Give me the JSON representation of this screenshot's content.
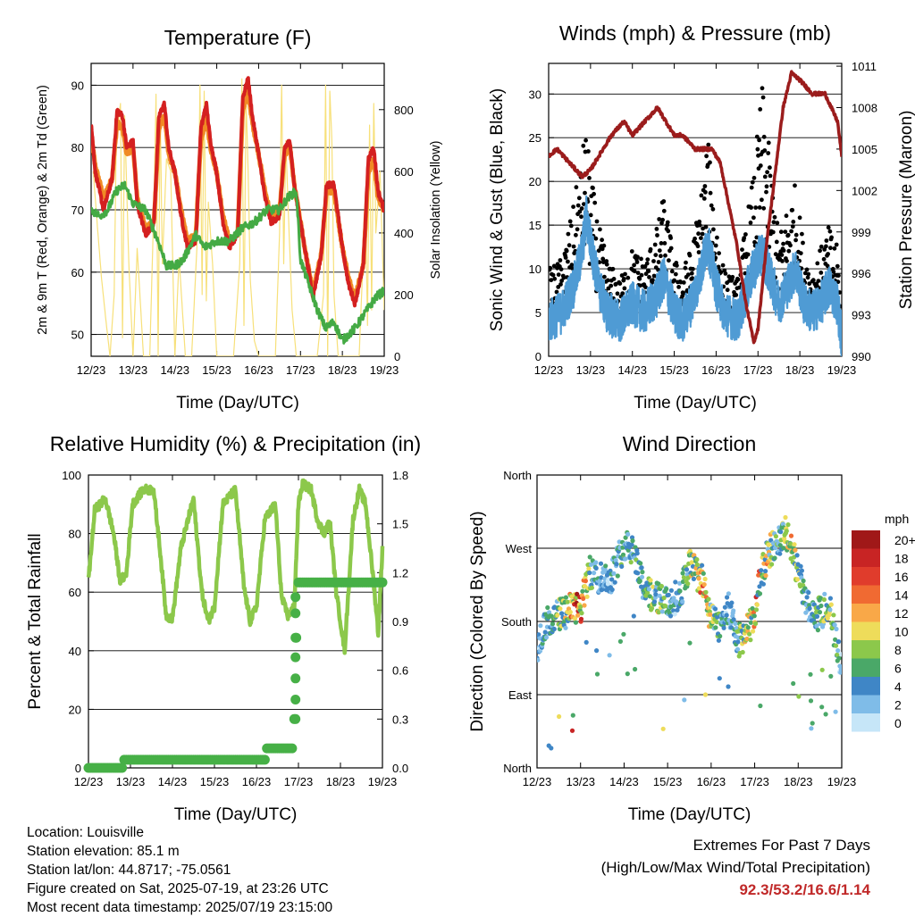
{
  "x_ticks": [
    "12/23",
    "13/23",
    "14/23",
    "15/23",
    "16/23",
    "17/23",
    "18/23",
    "19/23"
  ],
  "colors": {
    "temp_2m": "#d42020",
    "temp_9m": "#f08a24",
    "dewpoint": "#44aa44",
    "solar": "#f7e07a",
    "wind": "#4f9bd4",
    "gust": "#000000",
    "pressure": "#9b1c1c",
    "rh": "#8cc84b",
    "precip": "#46b046"
  },
  "chart_data": [
    {
      "type": "line",
      "title": "Temperature (F)",
      "xlabel": "Time (Day/UTC)",
      "ylabel": "2m & 9m T (Red, Orange) & 2m Td (Green)",
      "ylabel_right": "Solar Insolation (Yellow)",
      "x_ticks": [
        "12/23",
        "13/23",
        "14/23",
        "15/23",
        "16/23",
        "17/23",
        "18/23",
        "19/23"
      ],
      "ylim": [
        46.5,
        93.5
      ],
      "yticks": [
        50,
        60,
        70,
        80,
        90
      ],
      "ylim_right": [
        0,
        950
      ],
      "yticks_right": [
        0,
        200,
        400,
        600,
        800
      ],
      "grid": "horizontal",
      "series": [
        {
          "x": [
            0,
            0.1,
            0.3,
            0.5,
            0.62,
            0.75,
            0.85,
            1.0,
            1.1,
            1.3,
            1.5,
            1.62,
            1.75,
            1.85,
            2.0,
            2.15,
            2.3,
            2.5,
            2.62,
            2.75,
            2.85,
            3.0,
            3.15,
            3.3,
            3.5,
            3.62,
            3.75,
            3.85,
            4.0,
            4.15,
            4.3,
            4.5,
            4.62,
            4.75,
            4.85,
            5.0,
            5.15,
            5.3,
            5.5,
            5.62,
            5.8,
            6.0,
            6.15,
            6.3,
            6.5,
            6.62,
            6.75,
            6.85,
            7.0
          ],
          "y": [
            84,
            76,
            70,
            75,
            86,
            85,
            80,
            81,
            71,
            66,
            68,
            85,
            87,
            80,
            76,
            69,
            64,
            65,
            83,
            87,
            81,
            76,
            68,
            64,
            66,
            88,
            91,
            85,
            79,
            72,
            68,
            69,
            80,
            81,
            74,
            68,
            62,
            56,
            63,
            74,
            74,
            64,
            58,
            55,
            61,
            78,
            80,
            73,
            70
          ]
        },
        {
          "x": [
            0,
            0.1,
            0.3,
            0.5,
            0.62,
            0.75,
            0.85,
            1.0,
            1.1,
            1.3,
            1.5,
            1.62,
            1.75,
            1.85,
            2.0,
            2.15,
            2.3,
            2.5,
            2.62,
            2.75,
            2.85,
            3.0,
            3.15,
            3.3,
            3.5,
            3.62,
            3.75,
            3.85,
            4.0,
            4.15,
            4.3,
            4.5,
            4.62,
            4.75,
            4.85,
            5.0,
            5.15,
            5.3,
            5.5,
            5.62,
            5.8,
            6.0,
            6.15,
            6.3,
            6.5,
            6.62,
            6.75,
            6.85,
            7.0
          ],
          "y": [
            82,
            77,
            72,
            75,
            84,
            83,
            79,
            80,
            72,
            67,
            68,
            83,
            85,
            79,
            76,
            70,
            65,
            66,
            81,
            85,
            80,
            76,
            69,
            65,
            66,
            86,
            89,
            84,
            79,
            73,
            69,
            70,
            79,
            80,
            74,
            68,
            62,
            57,
            63,
            73,
            73,
            64,
            59,
            56,
            61,
            76,
            78,
            72,
            70
          ]
        },
        {
          "x": [
            0,
            0.2,
            0.4,
            0.6,
            0.8,
            1.0,
            1.3,
            1.6,
            1.8,
            2.0,
            2.2,
            2.5,
            2.7,
            3.0,
            3.3,
            3.6,
            3.9,
            4.2,
            4.5,
            4.7,
            4.9,
            5.0,
            5.2,
            5.4,
            5.6,
            5.8,
            6.0,
            6.3,
            6.6,
            6.8,
            7.0
          ],
          "y": [
            70,
            69,
            70,
            73,
            74,
            71,
            70,
            65,
            61,
            61,
            62,
            66,
            64,
            65,
            65,
            67,
            68,
            70,
            70,
            72,
            73,
            62,
            58,
            54,
            51,
            52,
            49,
            51,
            54,
            56,
            57
          ]
        },
        {
          "x": [
            0.05,
            0.15,
            0.25,
            0.35,
            0.45,
            0.55,
            0.6,
            0.7,
            0.75,
            0.8,
            0.9,
            1.0,
            1.1,
            1.25,
            1.4,
            1.5,
            1.55,
            1.6,
            1.65,
            1.7,
            1.8,
            1.9,
            2.0,
            2.1,
            2.25,
            2.4,
            2.55,
            2.6,
            2.65,
            2.7,
            2.75,
            2.8,
            2.9,
            3.0,
            3.1,
            3.25,
            3.4,
            3.55,
            3.6,
            3.65,
            3.7,
            3.75,
            3.8,
            3.9,
            4.0,
            4.1,
            4.25,
            4.4,
            4.5,
            4.55,
            4.6,
            4.65,
            4.7,
            4.8,
            4.9,
            5.0,
            5.1,
            5.25,
            5.4,
            5.55,
            5.6,
            5.65,
            5.7,
            5.75,
            5.8,
            5.9,
            6.0,
            6.1,
            6.25,
            6.4,
            6.55,
            6.6,
            6.65,
            6.7,
            6.75,
            6.8,
            6.9,
            7.0
          ],
          "y": [
            600,
            420,
            250,
            120,
            0,
            200,
            700,
            820,
            60,
            780,
            300,
            0,
            350,
            0,
            0,
            500,
            850,
            0,
            790,
            300,
            640,
            600,
            0,
            320,
            0,
            0,
            420,
            880,
            200,
            860,
            180,
            500,
            300,
            0,
            0,
            0,
            0,
            300,
            900,
            100,
            840,
            600,
            250,
            50,
            0,
            0,
            0,
            0,
            400,
            880,
            300,
            700,
            500,
            150,
            0,
            0,
            0,
            0,
            0,
            200,
            880,
            0,
            860,
            700,
            200,
            0,
            0,
            0,
            0,
            0,
            500,
            100,
            750,
            150,
            820,
            400,
            600,
            150
          ]
        }
      ]
    },
    {
      "type": "line",
      "title": "Winds (mph) & Pressure (mb)",
      "xlabel": "Time (Day/UTC)",
      "ylabel": "Sonic Wind & Gust (Blue, Black)",
      "ylabel_right": "Station Pressure (Maroon)",
      "x_ticks": [
        "12/23",
        "13/23",
        "14/23",
        "15/23",
        "16/23",
        "17/23",
        "18/23",
        "19/23"
      ],
      "ylim": [
        0,
        33.5
      ],
      "yticks": [
        0,
        5,
        10,
        15,
        20,
        25,
        30
      ],
      "ylim_right": [
        990,
        1011.2
      ],
      "yticks_right": [
        990,
        993,
        996,
        999,
        1002,
        1005,
        1008,
        1011
      ],
      "grid": "horizontal",
      "series": [
        {
          "x": [
            0,
            0.3,
            0.6,
            0.8,
            0.9,
            1.0,
            1.2,
            1.4,
            1.7,
            2.0,
            2.3,
            2.6,
            2.75,
            3.0,
            3.2,
            3.4,
            3.6,
            3.8,
            4.0,
            4.2,
            4.5,
            4.7,
            4.9,
            5.1,
            5.3,
            5.5,
            5.7,
            5.9,
            6.1,
            6.3,
            6.5,
            6.7,
            6.9,
            7.0
          ],
          "y": [
            4,
            5,
            8,
            12,
            16,
            13,
            8,
            5,
            4,
            6,
            5,
            7,
            9,
            5,
            4,
            6,
            9,
            13,
            8,
            5,
            4,
            7,
            10,
            12,
            9,
            6,
            8,
            10,
            6,
            5,
            6,
            8,
            6,
            2
          ]
        },
        {
          "x": [
            0,
            0.3,
            0.6,
            0.8,
            0.9,
            1.0,
            1.2,
            1.4,
            1.7,
            2.0,
            2.3,
            2.6,
            2.75,
            3.0,
            3.2,
            3.4,
            3.6,
            3.8,
            4.0,
            4.2,
            4.5,
            4.7,
            4.9,
            5.1,
            5.3,
            5.5,
            5.7,
            5.9,
            6.1,
            6.3,
            6.5,
            6.7,
            6.9,
            7.0
          ],
          "y": [
            8,
            9,
            14,
            19,
            21,
            17,
            12,
            9,
            7,
            10,
            9,
            12,
            15,
            9,
            8,
            10,
            14,
            20,
            13,
            8,
            7,
            12,
            17,
            25,
            18,
            11,
            14,
            16,
            10,
            8,
            10,
            12,
            10,
            4
          ]
        },
        {
          "x": [
            0,
            0.2,
            0.5,
            0.8,
            1.0,
            1.2,
            1.5,
            1.8,
            2.0,
            2.3,
            2.6,
            2.8,
            3.0,
            3.2,
            3.5,
            3.7,
            3.9,
            4.1,
            4.3,
            4.5,
            4.7,
            4.9,
            5.0,
            5.2,
            5.4,
            5.6,
            5.8,
            6.0,
            6.3,
            6.6,
            6.9,
            7.0
          ],
          "y": [
            1004.5,
            1005,
            1004,
            1003,
            1003.5,
            1004.5,
            1006,
            1007,
            1006,
            1007,
            1008,
            1007,
            1006,
            1006,
            1005,
            1005,
            1005,
            1004,
            1001,
            998,
            994,
            991,
            992,
            998,
            1003,
            1008,
            1010.5,
            1010,
            1009,
            1009,
            1007,
            1004.5
          ]
        }
      ]
    },
    {
      "type": "line",
      "title": "Relative Humidity (%) & Precipitation (in)",
      "xlabel": "Time (Day/UTC)",
      "ylabel": "Percent & Total Rainfall",
      "x_ticks": [
        "12/23",
        "13/23",
        "14/23",
        "15/23",
        "16/23",
        "17/23",
        "18/23",
        "19/23"
      ],
      "ylim": [
        0,
        100
      ],
      "yticks": [
        0,
        20,
        40,
        60,
        80,
        100
      ],
      "ylim_right": [
        0,
        1.8
      ],
      "yticks_right": [
        "0.0",
        "0.3",
        "0.6",
        "0.9",
        "1.2",
        "1.5",
        "1.8"
      ],
      "grid": "horizontal",
      "series": [
        {
          "x": [
            0,
            0.15,
            0.4,
            0.6,
            0.75,
            0.9,
            1.05,
            1.3,
            1.55,
            1.7,
            1.85,
            2.0,
            2.2,
            2.5,
            2.7,
            2.85,
            3.0,
            3.2,
            3.5,
            3.7,
            3.85,
            4.0,
            4.2,
            4.45,
            4.6,
            4.75,
            4.9,
            5.0,
            5.1,
            5.3,
            5.45,
            5.6,
            5.75,
            5.9,
            6.1,
            6.3,
            6.45,
            6.6,
            6.8,
            6.9,
            7.0
          ],
          "y": [
            64,
            88,
            92,
            80,
            64,
            66,
            90,
            95,
            95,
            75,
            52,
            51,
            75,
            92,
            60,
            50,
            55,
            90,
            95,
            62,
            50,
            55,
            85,
            90,
            58,
            52,
            55,
            90,
            97,
            95,
            85,
            80,
            84,
            60,
            40,
            85,
            95,
            90,
            62,
            46,
            75
          ]
        },
        {
          "x": [
            0,
            0.8,
            0.85,
            4.2,
            4.25,
            4.85,
            4.9,
            4.92,
            4.95,
            4.97,
            5.0,
            7.0
          ],
          "y": [
            0,
            0,
            0.05,
            0.05,
            0.12,
            0.12,
            0.3,
            0.55,
            0.8,
            0.95,
            1.14,
            1.14
          ]
        }
      ]
    },
    {
      "type": "scatter",
      "title": "Wind Direction",
      "xlabel": "Time (Day/UTC)",
      "ylabel": "Direction (Colored By Speed)",
      "x_ticks": [
        "12/23",
        "13/23",
        "14/23",
        "15/23",
        "16/23",
        "17/23",
        "18/23",
        "19/23"
      ],
      "y_ticks": [
        "North",
        "East",
        "South",
        "West",
        "North"
      ],
      "ylim": [
        0,
        360
      ],
      "grid": "horizontal",
      "colorbar_title": "mph",
      "colorbar_labels": [
        "20+",
        "18",
        "16",
        "14",
        "12",
        "10",
        "8",
        "6",
        "4",
        "2",
        "0"
      ],
      "colorbar_colors": [
        "#a01818",
        "#c82424",
        "#e03c2c",
        "#f06a32",
        "#f9a848",
        "#eedc5a",
        "#8cc84b",
        "#4aa868",
        "#3f86c6",
        "#7fbce8",
        "#c6e6f8"
      ],
      "series": [
        {
          "x": [
            0,
            0.2,
            0.4,
            0.6,
            0.8,
            1.0,
            1.2,
            1.4,
            1.7,
            2.0,
            2.2,
            2.5,
            2.8,
            3.0,
            3.3,
            3.5,
            3.8,
            4.0,
            4.2,
            4.4,
            4.6,
            4.8,
            5.0,
            5.1,
            5.3,
            5.5,
            5.7,
            5.9,
            6.1,
            6.3,
            6.5,
            6.7,
            6.9,
            7.0
          ],
          "y": [
            150,
            175,
            185,
            190,
            195,
            195,
            240,
            235,
            235,
            275,
            270,
            215,
            210,
            200,
            215,
            250,
            230,
            180,
            175,
            200,
            155,
            165,
            185,
            225,
            265,
            275,
            290,
            260,
            220,
            185,
            190,
            200,
            145,
            120
          ]
        }
      ]
    }
  ],
  "info": {
    "location": "Location: Louisville",
    "elevation": "Station elevation: 85.1 m",
    "latlon": "Station lat/lon: 44.8717; -75.0561",
    "created": "Figure created on Sat, 2025-07-19, at 23:26 UTC",
    "recent": "Most recent data timestamp: 2025/07/19 23:15:00"
  },
  "extremes": {
    "title": "Extremes For Past 7 Days",
    "subtitle": "(High/Low/Max Wind/Total Precipitation)",
    "values": "92.3/53.2/16.6/1.14"
  }
}
